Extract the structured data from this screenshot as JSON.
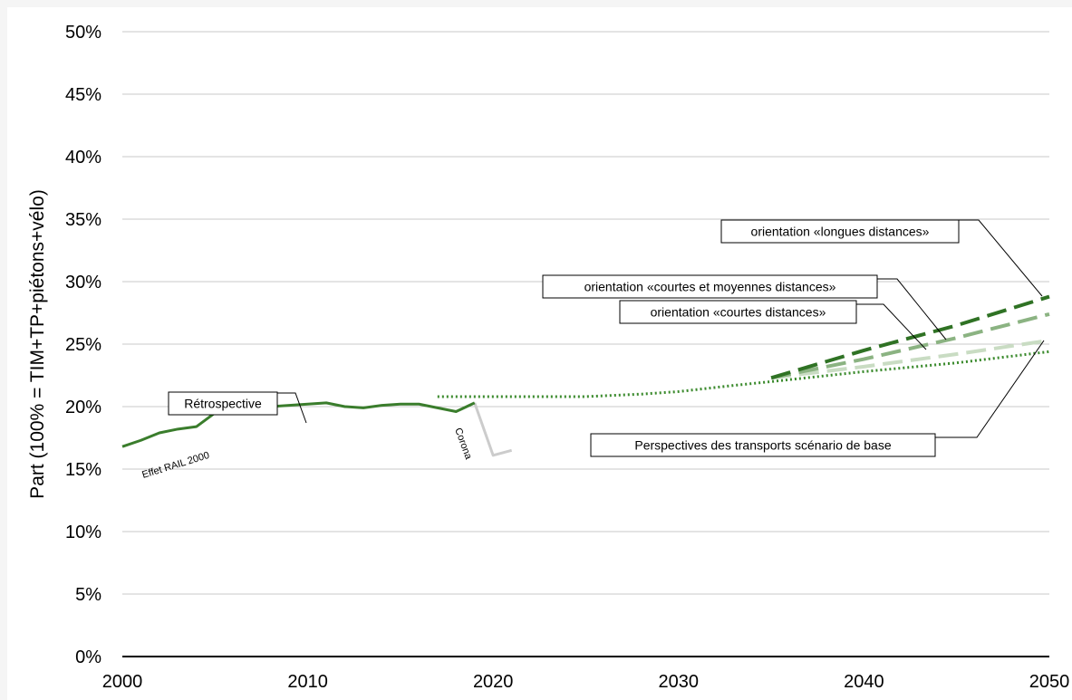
{
  "chart_data": {
    "type": "line",
    "ylabel": "Part (100% = TIM+TP+piétons+vélo)",
    "xlim": [
      2000,
      2050
    ],
    "ylim": [
      0,
      50
    ],
    "x_ticks": [
      2000,
      2010,
      2020,
      2030,
      2040,
      2050
    ],
    "y_ticks": [
      "0%",
      "5%",
      "10%",
      "15%",
      "20%",
      "25%",
      "30%",
      "35%",
      "40%",
      "45%",
      "50%"
    ],
    "grid": true,
    "series": [
      {
        "name": "Rétrospective",
        "color": "#3a7d2c",
        "style": "solid",
        "x": [
          2000,
          2001,
          2002,
          2003,
          2004,
          2005,
          2006,
          2007,
          2008,
          2009,
          2010,
          2011,
          2012,
          2013,
          2014,
          2015,
          2016,
          2017,
          2018,
          2019
        ],
        "y": [
          16.8,
          17.3,
          17.9,
          18.2,
          18.4,
          19.5,
          19.8,
          19.9,
          20.0,
          20.1,
          20.2,
          20.3,
          20.0,
          19.9,
          20.1,
          20.2,
          20.2,
          19.9,
          19.6,
          20.3
        ]
      },
      {
        "name": "Corona",
        "color": "#cccccc",
        "style": "solid",
        "x": [
          2019,
          2020,
          2021
        ],
        "y": [
          20.3,
          16.1,
          16.5
        ]
      },
      {
        "name": "Perspectives des transports scénario de base",
        "color": "#3a8a2c",
        "style": "dotted",
        "x": [
          2017,
          2020,
          2025,
          2028,
          2030,
          2033,
          2035,
          2040,
          2045,
          2050
        ],
        "y": [
          20.8,
          20.8,
          20.8,
          21.0,
          21.2,
          21.7,
          22.0,
          22.8,
          23.5,
          24.4
        ]
      },
      {
        "name": "orientation «courtes distances»",
        "color": "#c9dcc3",
        "style": "dashed",
        "x": [
          2035,
          2040,
          2045,
          2050
        ],
        "y": [
          22.3,
          23.2,
          24.2,
          25.3
        ]
      },
      {
        "name": "orientation «courtes et moyennes distances»",
        "color": "#8bb382",
        "style": "dashed",
        "x": [
          2035,
          2040,
          2045,
          2050
        ],
        "y": [
          22.3,
          23.8,
          25.5,
          27.4
        ]
      },
      {
        "name": "orientation «longues distances»",
        "color": "#2f7224",
        "style": "dashed",
        "x": [
          2035,
          2040,
          2045,
          2050
        ],
        "y": [
          22.3,
          24.5,
          26.5,
          28.8
        ]
      }
    ],
    "annotations": {
      "retro": "Rétrospective",
      "effet": "Effet RAIL 2000",
      "corona": "Corona",
      "longues": "orientation «longues distances»",
      "courtes_moyennes": "orientation «courtes et moyennes distances»",
      "courtes": "orientation «courtes distances»",
      "base": "Perspectives des transports scénario de base"
    }
  }
}
